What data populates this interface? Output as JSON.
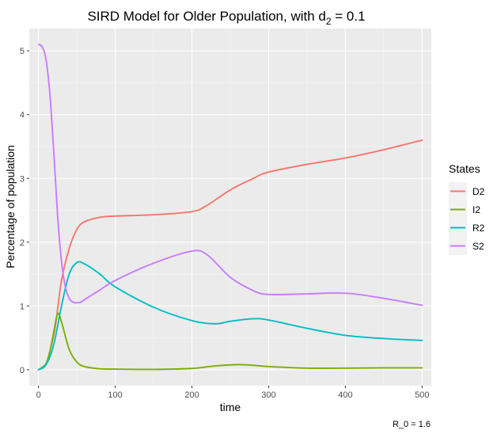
{
  "chart_data": {
    "type": "line",
    "title": {
      "prefix": "SIRD Model for Older Population, with d",
      "subscript": "2",
      "suffix": " = 0.1"
    },
    "xlabel": "time",
    "ylabel": "Percentage of population",
    "caption": "R_0 = 1.6",
    "xlim": [
      -12,
      512
    ],
    "ylim": [
      -0.25,
      5.35
    ],
    "x_ticks": [
      0,
      100,
      200,
      300,
      400,
      500
    ],
    "y_ticks": [
      0,
      1,
      2,
      3,
      4,
      5
    ],
    "grid": true,
    "legend": {
      "title": "States",
      "position": "right"
    },
    "series": [
      {
        "name": "D2",
        "color": "#F8766D",
        "x": [
          0,
          10,
          20,
          25,
          30,
          40,
          50,
          60,
          80,
          100,
          150,
          200,
          220,
          250,
          280,
          300,
          350,
          400,
          450,
          500
        ],
        "y": [
          0,
          0.1,
          0.55,
          0.95,
          1.4,
          1.9,
          2.2,
          2.32,
          2.39,
          2.41,
          2.43,
          2.48,
          2.58,
          2.82,
          3.0,
          3.1,
          3.22,
          3.32,
          3.45,
          3.6
        ]
      },
      {
        "name": "I2",
        "color": "#7CAE00",
        "x": [
          0,
          10,
          15,
          20,
          25,
          30,
          40,
          50,
          60,
          80,
          100,
          150,
          200,
          230,
          260,
          280,
          300,
          350,
          400,
          450,
          500
        ],
        "y": [
          0,
          0.1,
          0.3,
          0.6,
          0.88,
          0.75,
          0.32,
          0.12,
          0.05,
          0.015,
          0.01,
          0.005,
          0.02,
          0.06,
          0.08,
          0.07,
          0.05,
          0.025,
          0.025,
          0.03,
          0.03
        ]
      },
      {
        "name": "R2",
        "color": "#00BFC4",
        "x": [
          0,
          10,
          20,
          30,
          40,
          50,
          60,
          80,
          100,
          150,
          200,
          230,
          250,
          280,
          300,
          350,
          400,
          450,
          500
        ],
        "y": [
          0,
          0.08,
          0.4,
          1.0,
          1.5,
          1.68,
          1.66,
          1.5,
          1.3,
          0.98,
          0.77,
          0.72,
          0.76,
          0.8,
          0.78,
          0.65,
          0.54,
          0.49,
          0.46
        ]
      },
      {
        "name": "S2",
        "color": "#C77CFF",
        "x": [
          0,
          5,
          10,
          15,
          20,
          25,
          30,
          35,
          40,
          45,
          50,
          55,
          60,
          80,
          100,
          150,
          200,
          220,
          250,
          280,
          300,
          350,
          400,
          450,
          500
        ],
        "y": [
          5.1,
          5.06,
          4.85,
          4.3,
          3.4,
          2.4,
          1.7,
          1.3,
          1.12,
          1.06,
          1.05,
          1.06,
          1.1,
          1.25,
          1.4,
          1.67,
          1.86,
          1.8,
          1.45,
          1.24,
          1.18,
          1.19,
          1.2,
          1.12,
          1.01
        ]
      }
    ]
  }
}
